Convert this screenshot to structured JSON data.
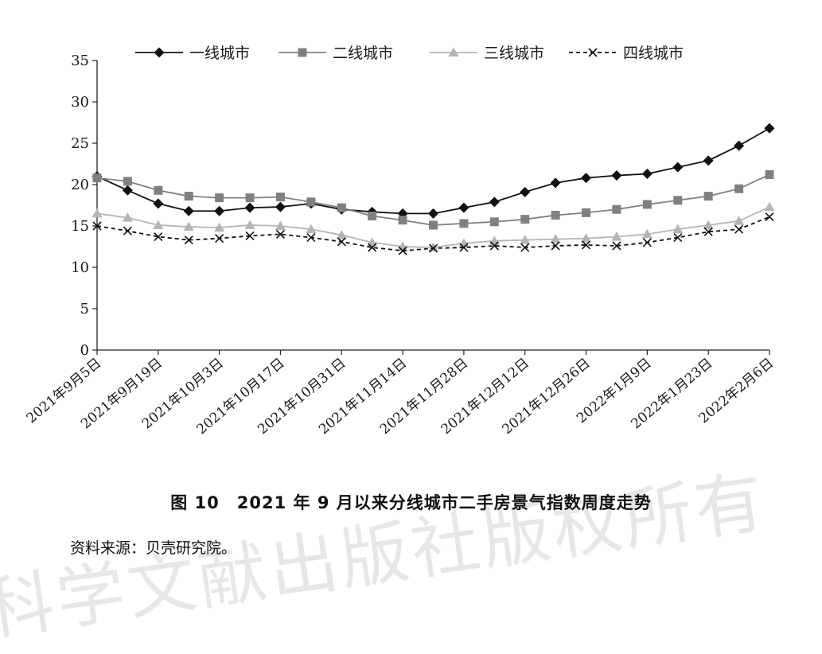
{
  "chart_data": {
    "type": "line",
    "x": [
      "2021年9月5日",
      "2021年9月12日",
      "2021年9月19日",
      "2021年9月26日",
      "2021年10月3日",
      "2021年10月10日",
      "2021年10月17日",
      "2021年10月24日",
      "2021年10月31日",
      "2021年11月7日",
      "2021年11月14日",
      "2021年11月21日",
      "2021年11月28日",
      "2021年12月5日",
      "2021年12月12日",
      "2021年12月19日",
      "2021年12月26日",
      "2022年1月2日",
      "2022年1月9日",
      "2022年1月16日",
      "2022年1月23日",
      "2022年1月30日",
      "2022年2月6日"
    ],
    "xticklabels": [
      "2021年9月5日",
      "2021年9月19日",
      "2021年10月3日",
      "2021年10月17日",
      "2021年10月31日",
      "2021年11月14日",
      "2021年11月28日",
      "2021年12月12日",
      "2021年12月26日",
      "2022年1月9日",
      "2022年1月23日",
      "2022年2月6日"
    ],
    "ylim": [
      0,
      35
    ],
    "yticks": [
      0,
      5,
      10,
      15,
      20,
      25,
      30,
      35
    ],
    "legend_position": "top",
    "series": [
      {
        "name": "一线城市",
        "marker": "diamond",
        "color": "#111111",
        "dash": "",
        "values": [
          21.0,
          19.3,
          17.7,
          16.8,
          16.8,
          17.2,
          17.3,
          17.7,
          17.0,
          16.7,
          16.5,
          16.5,
          17.2,
          17.9,
          19.1,
          20.2,
          20.8,
          21.1,
          21.3,
          22.1,
          22.9,
          24.7,
          26.8
        ]
      },
      {
        "name": "二线城市",
        "marker": "square",
        "color": "#808080",
        "dash": "",
        "values": [
          20.8,
          20.4,
          19.3,
          18.6,
          18.4,
          18.4,
          18.5,
          17.9,
          17.2,
          16.2,
          15.7,
          15.1,
          15.3,
          15.5,
          15.8,
          16.3,
          16.6,
          17.0,
          17.6,
          18.1,
          18.6,
          19.5,
          21.2
        ]
      },
      {
        "name": "三线城市",
        "marker": "triangle",
        "color": "#b5b5b5",
        "dash": "",
        "values": [
          16.5,
          16.0,
          15.1,
          14.9,
          14.8,
          15.1,
          15.0,
          14.6,
          13.9,
          13.0,
          12.5,
          12.4,
          12.9,
          13.2,
          13.3,
          13.4,
          13.5,
          13.7,
          14.0,
          14.6,
          15.1,
          15.6,
          17.3
        ]
      },
      {
        "name": "四线城市",
        "marker": "x",
        "color": "#111111",
        "dash": "5,4",
        "values": [
          15.0,
          14.4,
          13.7,
          13.3,
          13.5,
          13.8,
          14.0,
          13.6,
          13.1,
          12.4,
          12.0,
          12.3,
          12.4,
          12.6,
          12.4,
          12.6,
          12.7,
          12.6,
          13.0,
          13.6,
          14.3,
          14.6,
          16.1
        ]
      }
    ]
  },
  "caption": "图 10　2021 年 9 月以来分线城市二手房景气指数周度走势",
  "source": "资料来源：贝壳研究院。",
  "watermark": "科学文献出版社版权所有"
}
